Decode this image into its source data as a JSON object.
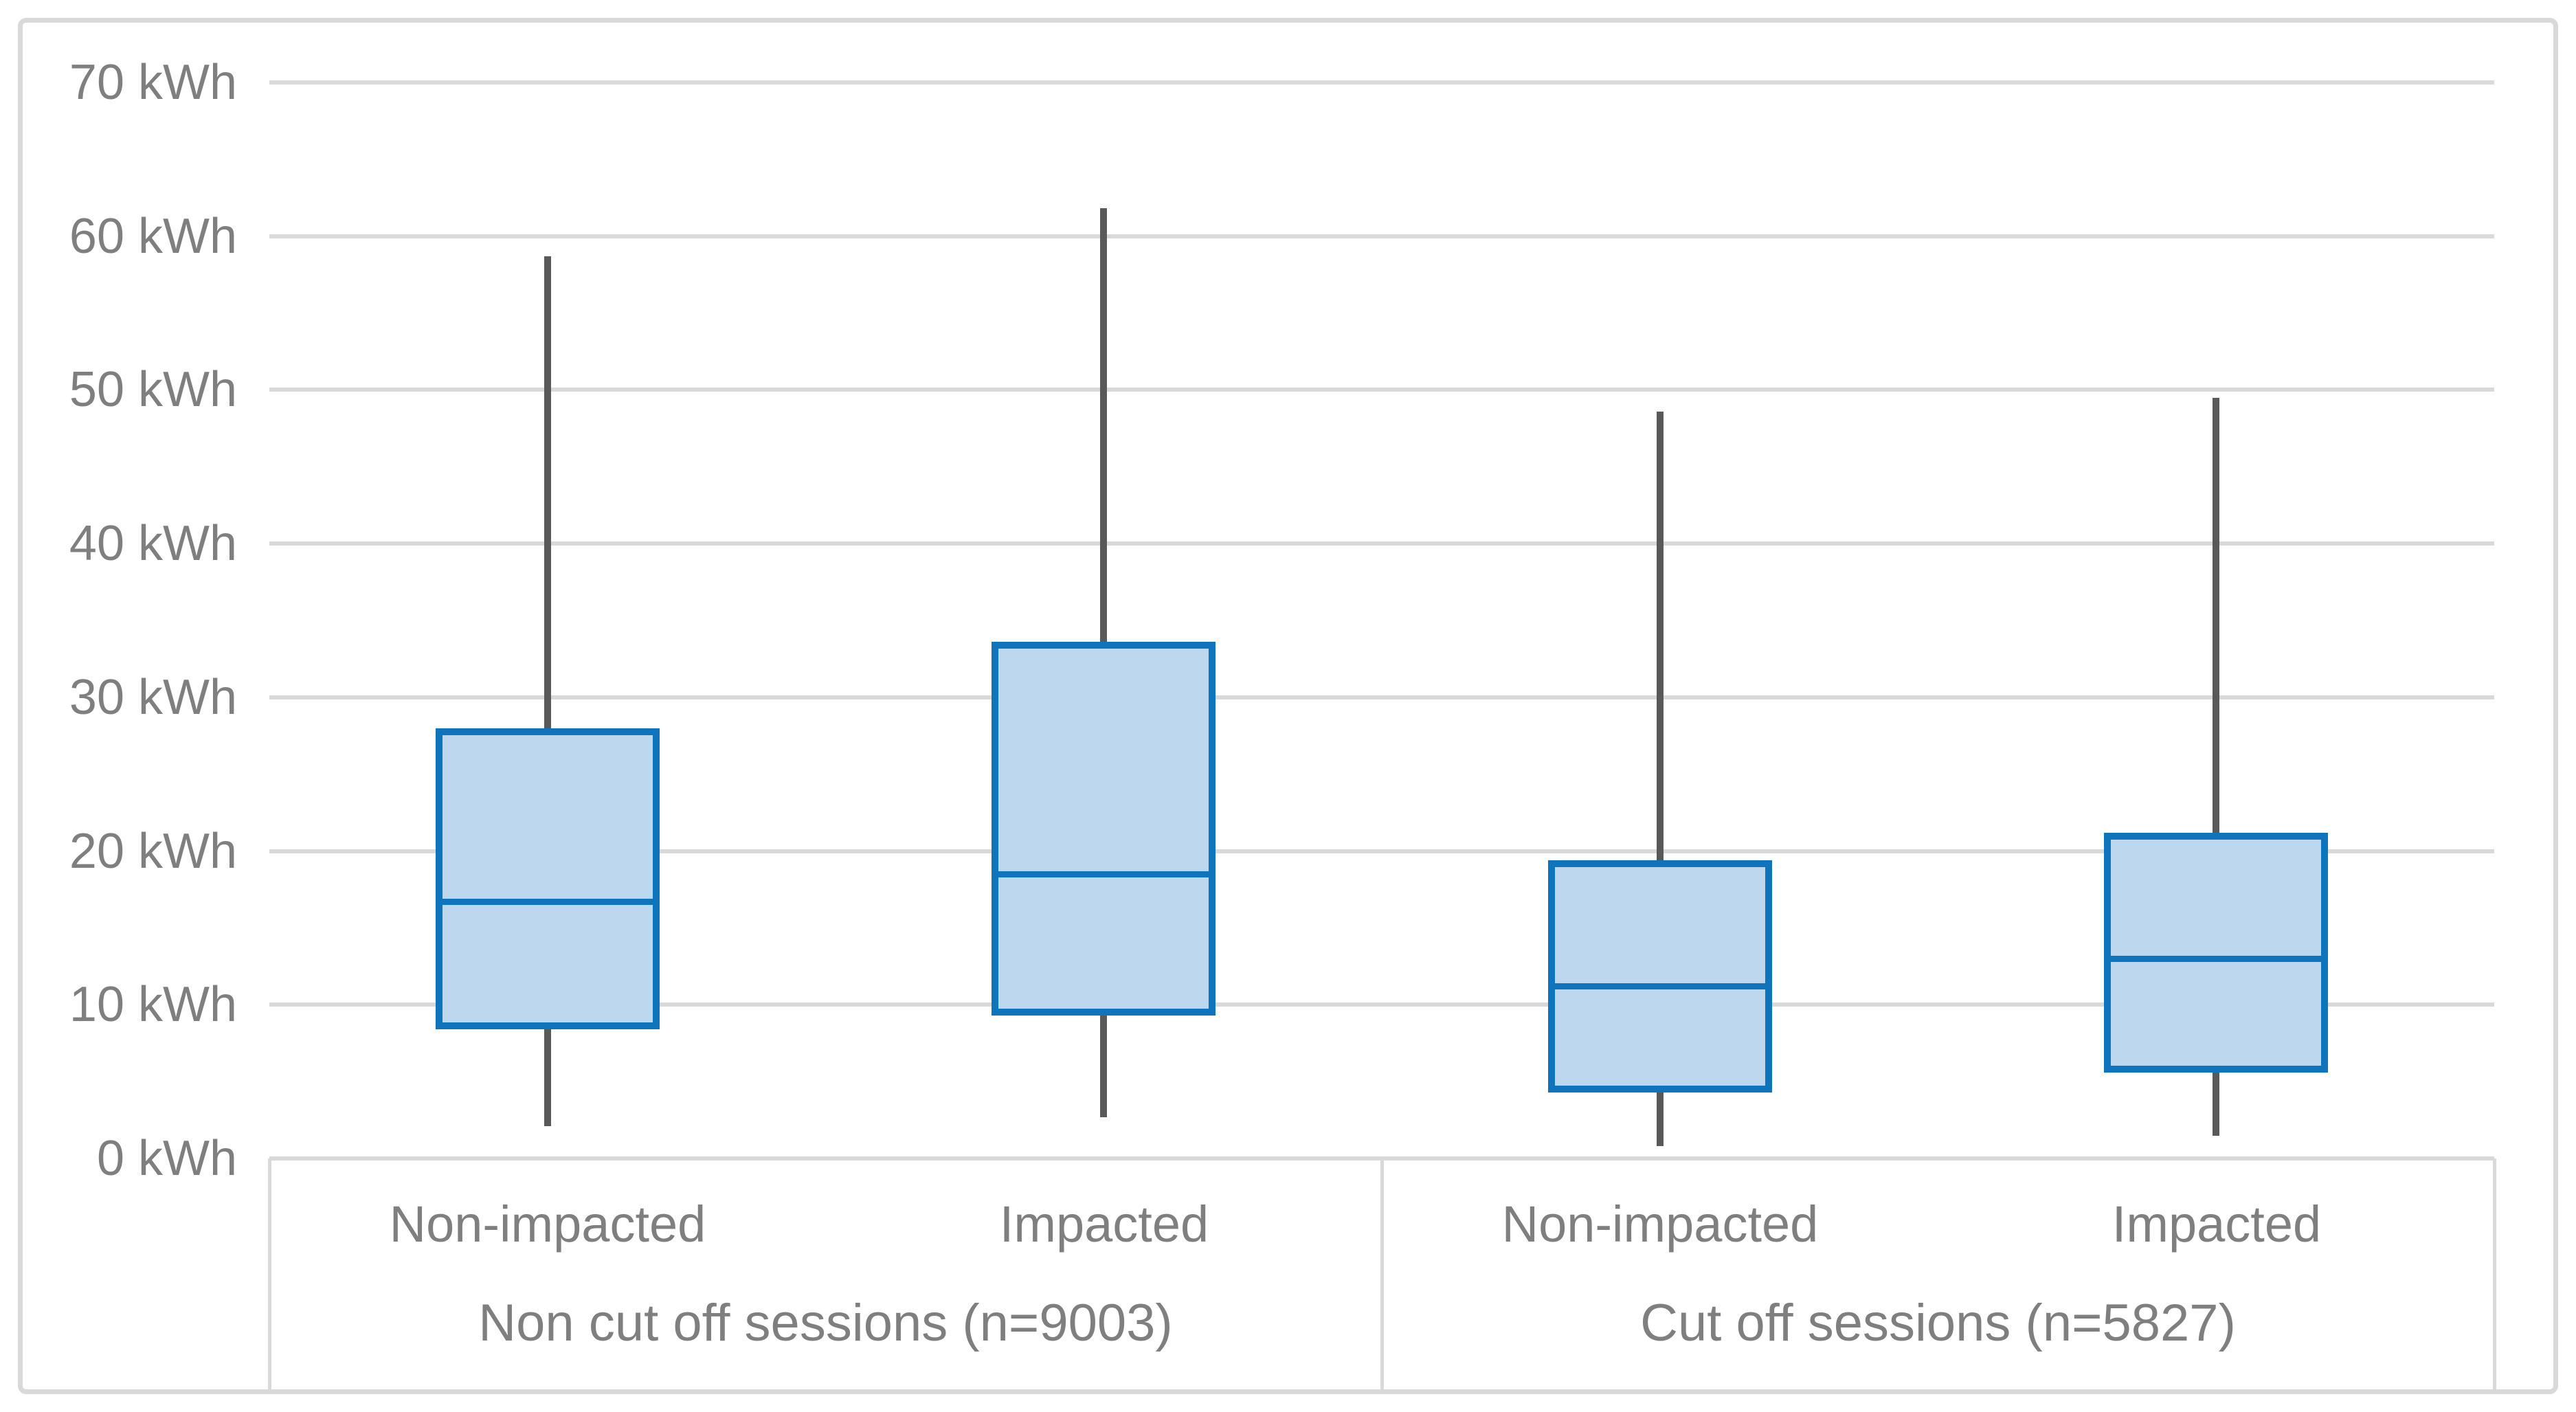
{
  "figure": {
    "background": "#ffffff",
    "border_color": "#d9d9d9"
  },
  "colors": {
    "box_fill": "#bdd7ee",
    "box_border": "#0e75bc",
    "whisker": "#595959",
    "gridline": "#d9d9d9",
    "axis_table_line": "#d9d9d9",
    "label_text": "#7f7f7f"
  },
  "chart_data": {
    "type": "boxplot",
    "title": "",
    "unit": "kWh",
    "y_axis": {
      "min": 0,
      "max": 70,
      "step": 10,
      "tick_suffix": " kWh",
      "tick_labels": [
        "0 kWh",
        "10 kWh",
        "20 kWh",
        "30 kWh",
        "40 kWh",
        "50 kWh",
        "60 kWh",
        "70 kWh"
      ]
    },
    "grid": true,
    "legend": false,
    "groups": [
      {
        "label": "Non cut off sessions (n=9003)",
        "categories": [
          "Non-impacted",
          "Impacted"
        ]
      },
      {
        "label": "Cut off sessions (n=5827)",
        "categories": [
          "Non-impacted",
          "Impacted"
        ]
      }
    ],
    "boxes": [
      {
        "group": "Non cut off sessions (n=9003)",
        "category": "Non-impacted",
        "whisker_low": 2.1,
        "q1": 8.4,
        "median": 16.7,
        "q3": 28.0,
        "whisker_high": 58.7
      },
      {
        "group": "Non cut off sessions (n=9003)",
        "category": "Impacted",
        "whisker_low": 2.7,
        "q1": 9.3,
        "median": 18.5,
        "q3": 33.6,
        "whisker_high": 61.8
      },
      {
        "group": "Cut off sessions (n=5827)",
        "category": "Non-impacted",
        "whisker_low": 0.8,
        "q1": 4.3,
        "median": 11.2,
        "q3": 19.4,
        "whisker_high": 48.6
      },
      {
        "group": "Cut off sessions (n=5827)",
        "category": "Impacted",
        "whisker_low": 1.5,
        "q1": 5.6,
        "median": 13.0,
        "q3": 21.2,
        "whisker_high": 49.5
      }
    ]
  }
}
